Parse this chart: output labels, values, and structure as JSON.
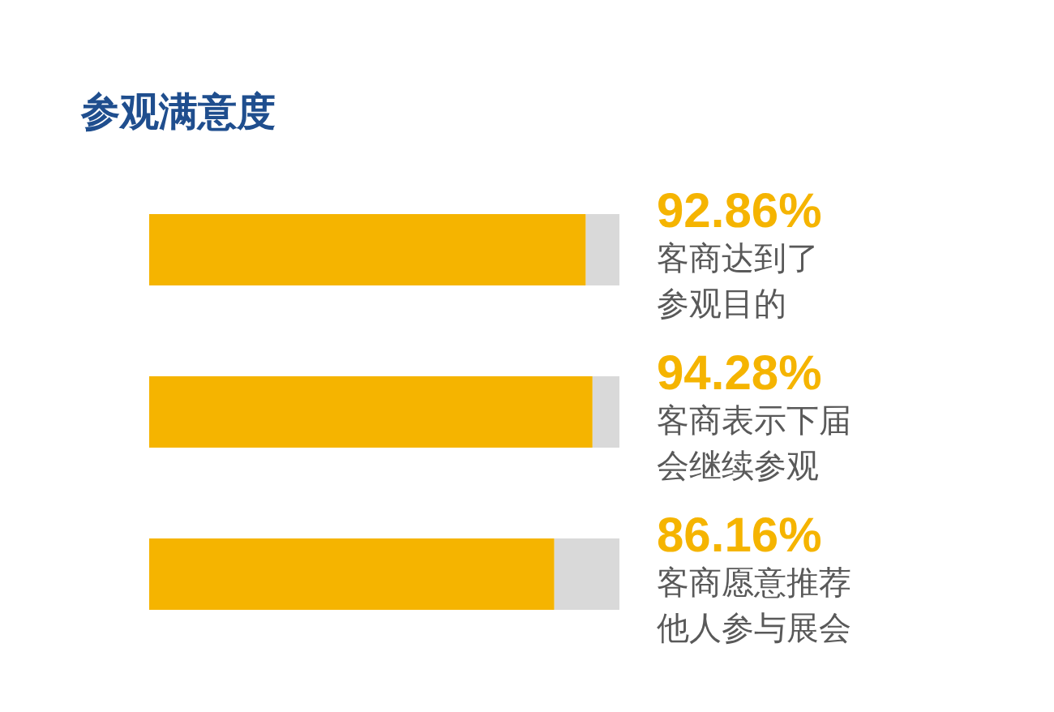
{
  "chart_data": {
    "type": "bar",
    "orientation": "horizontal",
    "stacked": true,
    "title": "参观满意度",
    "categories": [
      "客商达到了参观目的",
      "客商表示下届会继续参观",
      "客商愿意推荐他人参与展会"
    ],
    "series": [
      {
        "color": "#f5b400",
        "values": [
          92.86,
          94.28,
          86.16
        ],
        "value_labels": [
          "92.86%",
          "94.28%",
          "86.16%"
        ]
      },
      {
        "color": "#d9d9d9",
        "values": [
          7.14,
          5.72,
          13.84
        ]
      }
    ],
    "tick_labels": "y"
  }
}
